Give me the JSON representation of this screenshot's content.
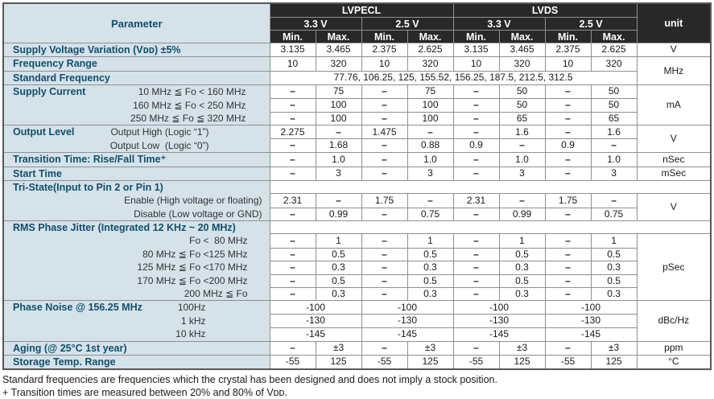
{
  "colors": {
    "header_bg": "#282828",
    "header_text": "#ffffff",
    "param_bg": "#d5e2ea",
    "param_heading_text": "#10506c",
    "sub_label_text": "#333333",
    "cell_text": "#1a1a1a",
    "grid_border": "#8f8f8f",
    "outer_border": "#55585a"
  },
  "table": {
    "header": {
      "parameter": "Parameter",
      "groups": [
        {
          "label": "LVPECL"
        },
        {
          "label": "LVDS"
        }
      ],
      "voltages": [
        "3.3 V",
        "2.5 V",
        "3.3 V",
        "2.5 V"
      ],
      "min": "Min.",
      "max": "Max.",
      "unit": "unit"
    },
    "rows": [
      {
        "param": {
          "id": "supply-voltage-variation",
          "label": "Supply Voltage Variation (Vᴅᴅ) ±5%",
          "rowspan": 1,
          "subs": [],
          "subStart": 0
        },
        "cells": [
          "3.135",
          "3.465",
          "2.375",
          "2.625",
          "3.135",
          "3.465",
          "2.375",
          "2.625"
        ],
        "unit": {
          "text": "V",
          "rowspan": 1
        }
      },
      {
        "param": {
          "id": "frequency-range",
          "label": "Frequency Range",
          "rowspan": 1,
          "subs": [],
          "subStart": 0
        },
        "cells": [
          "10",
          "320",
          "10",
          "320",
          "10",
          "320",
          "10",
          "320"
        ],
        "unit": {
          "text": "MHz",
          "rowspan": 2
        }
      },
      {
        "param": {
          "id": "standard-frequency",
          "label": "Standard Frequency",
          "rowspan": 1,
          "subs": [],
          "subStart": 0
        },
        "cells": [
          {
            "text": "77.76, 106.25, 125, 155.52, 156.25, 187.5, 212.5, 312.5",
            "colspan": 8
          }
        ],
        "unit": null
      },
      {
        "param": {
          "id": "supply-current",
          "label": "Supply Current",
          "rowspan": 3,
          "subs": [
            "10 MHz ≦ Fo < 160 MHz",
            "160 MHz ≦ Fo < 250 MHz",
            "250 MHz ≦ Fo ≦ 320 MHz"
          ],
          "subStart": 0
        },
        "cells": [
          "–",
          "75",
          "–",
          "75",
          "–",
          "50",
          "–",
          "50"
        ],
        "unit": {
          "text": "mA",
          "rowspan": 3
        }
      },
      {
        "cells": [
          "–",
          "100",
          "–",
          "100",
          "–",
          "50",
          "–",
          "50"
        ],
        "unit": null
      },
      {
        "cells": [
          "–",
          "100",
          "–",
          "100",
          "–",
          "65",
          "–",
          "65"
        ],
        "unit": null
      },
      {
        "param": {
          "id": "output-level",
          "label": "Output Level",
          "rowspan": 2,
          "subs": [
            "Output High (Logic “1”)",
            "Output Low  (Logic “0”)"
          ],
          "subStart": 0
        },
        "cells": [
          "2.275",
          "–",
          "1.475",
          "–",
          "–",
          "1.6",
          "–",
          "1.6"
        ],
        "unit": {
          "text": "V",
          "rowspan": 2
        }
      },
      {
        "cells": [
          "–",
          "1.68",
          "–",
          "0.88",
          "0.9",
          "–",
          "0.9",
          "–"
        ],
        "unit": null
      },
      {
        "param": {
          "id": "transition-time",
          "label": "Transition Time: Rise/Fall Time⁺",
          "rowspan": 1,
          "subs": [],
          "subStart": 0
        },
        "cells": [
          "–",
          "1.0",
          "–",
          "1.0",
          "–",
          "1.0",
          "–",
          "1.0"
        ],
        "unit": {
          "text": "nSec",
          "rowspan": 1
        }
      },
      {
        "param": {
          "id": "start-time",
          "label": "Start Time",
          "rowspan": 1,
          "subs": [],
          "subStart": 0
        },
        "cells": [
          "–",
          "3",
          "–",
          "3",
          "–",
          "3",
          "–",
          "3"
        ],
        "unit": {
          "text": "mSec",
          "rowspan": 1
        }
      },
      {
        "param": {
          "id": "tri-state",
          "label": "Tri-State(Input to Pin 2 or Pin 1)",
          "rowspan": 3,
          "subs": [
            "Enable (High voltage or floating)",
            "Disable (Low voltage or GND)"
          ],
          "subStart": 1
        },
        "cells": [
          {
            "text": "",
            "colspan": 9,
            "blank": true
          }
        ],
        "unit": null
      },
      {
        "cells": [
          "2.31",
          "–",
          "1.75",
          "–",
          "2.31",
          "–",
          "1.75",
          "–"
        ],
        "unit": {
          "text": "V",
          "rowspan": 2
        }
      },
      {
        "cells": [
          "–",
          "0.99",
          "–",
          "0.75",
          "–",
          "0.99",
          "–",
          "0.75"
        ],
        "unit": null
      },
      {
        "param": {
          "id": "rms-phase-jitter",
          "label": "RMS Phase Jitter (Integrated 12 KHz ~ 20 MHz)",
          "rowspan": 6,
          "subs": [
            "Fo <  80 MHz",
            "80 MHz ≦ Fo <125 MHz",
            "125 MHz ≦ Fo <170 MHz",
            "170 MHz ≦ Fo <200 MHz",
            "200 MHz ≦ Fo"
          ],
          "subStart": 1
        },
        "cells": [
          {
            "text": "",
            "colspan": 9,
            "blank": true
          }
        ],
        "unit": null
      },
      {
        "cells": [
          "–",
          "1",
          "–",
          "1",
          "–",
          "1",
          "–",
          "1"
        ],
        "unit": {
          "text": "pSec",
          "rowspan": 5
        }
      },
      {
        "cells": [
          "–",
          "0.5",
          "–",
          "0.5",
          "–",
          "0.5",
          "–",
          "0.5"
        ],
        "unit": null
      },
      {
        "cells": [
          "–",
          "0.3",
          "–",
          "0.3",
          "–",
          "0.3",
          "–",
          "0.3"
        ],
        "unit": null
      },
      {
        "cells": [
          "–",
          "0.5",
          "–",
          "0.5",
          "–",
          "0.5",
          "–",
          "0.5"
        ],
        "unit": null
      },
      {
        "cells": [
          "–",
          "0.3",
          "–",
          "0.3",
          "–",
          "0.3",
          "–",
          "0.3"
        ],
        "unit": null
      },
      {
        "param": {
          "id": "phase-noise",
          "label": "Phase Noise @ 156.25 MHz",
          "rowspan": 3,
          "subs": [
            "100Hz",
            "1 kHz",
            "10 kHz"
          ],
          "subStart": 0
        },
        "cells": [
          {
            "text": "-100",
            "colspan": 2
          },
          {
            "text": "-100",
            "colspan": 2
          },
          {
            "text": "-100",
            "colspan": 2
          },
          {
            "text": "-100",
            "colspan": 2
          }
        ],
        "unit": {
          "text": "dBc/Hz",
          "rowspan": 3
        }
      },
      {
        "cells": [
          {
            "text": "-130",
            "colspan": 2
          },
          {
            "text": "-130",
            "colspan": 2
          },
          {
            "text": "-130",
            "colspan": 2
          },
          {
            "text": "-130",
            "colspan": 2
          }
        ],
        "unit": null
      },
      {
        "cells": [
          {
            "text": "-145",
            "colspan": 2
          },
          {
            "text": "-145",
            "colspan": 2
          },
          {
            "text": "-145",
            "colspan": 2
          },
          {
            "text": "-145",
            "colspan": 2
          }
        ],
        "unit": null
      },
      {
        "param": {
          "id": "aging",
          "label": "Aging (@ 25°C 1st year)",
          "rowspan": 1,
          "subs": [],
          "subStart": 0
        },
        "cells": [
          "–",
          "±3",
          "–",
          "±3",
          "–",
          "±3",
          "–",
          "±3"
        ],
        "unit": {
          "text": "ppm",
          "rowspan": 1
        }
      },
      {
        "param": {
          "id": "storage-temp-range",
          "label": "Storage Temp. Range",
          "rowspan": 1,
          "subs": [],
          "subStart": 0
        },
        "cells": [
          "-55",
          "125",
          "-55",
          "125",
          "-55",
          "125",
          "-55",
          "125"
        ],
        "unit": {
          "text": "°C",
          "rowspan": 1
        }
      }
    ]
  },
  "footnotes": [
    "Standard frequencies are frequencies which the crystal has been designed and does not imply a stock position.",
    "+ Transition times are measured between 20% and 80% of Vᴅᴅ."
  ]
}
